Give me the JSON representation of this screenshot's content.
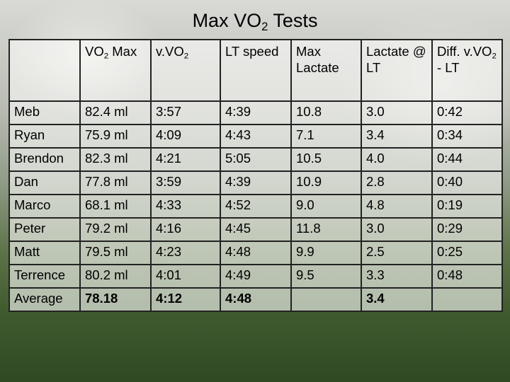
{
  "title": [
    "Max VO",
    "2",
    " Tests"
  ],
  "table": {
    "header": [
      [
        "VO",
        "2",
        " Max"
      ],
      [
        "v.VO",
        "2"
      ],
      [
        "LT speed"
      ],
      [
        "Max Lactate"
      ],
      [
        "Lactate @ LT"
      ],
      [
        "Diff. v.VO",
        "2",
        " - LT"
      ]
    ],
    "rows": [
      [
        "Meb",
        "82.4 ml",
        "3:57",
        "4:39",
        "10.8",
        "3.0",
        "0:42"
      ],
      [
        "Ryan",
        "75.9 ml",
        "4:09",
        "4:43",
        "7.1",
        "3.4",
        "0:34"
      ],
      [
        "Brendon",
        "82.3 ml",
        "4:21",
        "5:05",
        "10.5",
        "4.0",
        "0:44"
      ],
      [
        "Dan",
        "77.8 ml",
        "3:59",
        "4:39",
        "10.9",
        "2.8",
        "0:40"
      ],
      [
        "Marco",
        "68.1 ml",
        "4:33",
        "4:52",
        "9.0",
        "4.8",
        "0:19"
      ],
      [
        "Peter",
        "79.2 ml",
        "4:16",
        "4:45",
        "11.8",
        "3.0",
        "0:29"
      ],
      [
        "Matt",
        "79.5 ml",
        "4:23",
        "4:48",
        "9.9",
        "2.5",
        "0:25"
      ],
      [
        "Terrence",
        "80.2 ml",
        "4:01",
        "4:49",
        "9.5",
        "3.3",
        "0:48"
      ],
      [
        "Average",
        "78.18",
        "4:12",
        "4:48",
        null,
        "3.4",
        null
      ]
    ]
  }
}
